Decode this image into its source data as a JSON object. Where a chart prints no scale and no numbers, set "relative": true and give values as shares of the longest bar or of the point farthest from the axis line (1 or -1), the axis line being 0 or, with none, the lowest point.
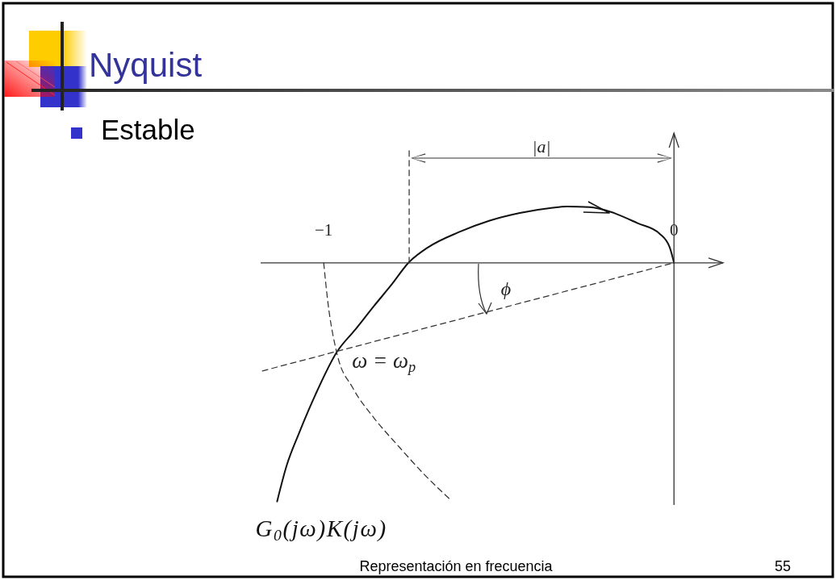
{
  "chart_data": {
    "type": "line",
    "title": "Nyquist",
    "subtitle": "Estable",
    "relative": true,
    "xlim": [
      -1.18,
      0.14
    ],
    "xticks": [
      -1,
      0
    ],
    "marker": "none",
    "series": [
      {
        "name": "G$_{0}$(jω)K(jω)",
        "color": "#111111",
        "line_style": "solid",
        "x": [
          -1.133,
          -1.106,
          -1.071,
          -1.025,
          -0.963,
          -0.91,
          -0.857,
          -0.806,
          -0.758,
          -0.703,
          -0.615,
          -0.528,
          -0.44,
          -0.35,
          -0.306,
          -0.242,
          -0.18,
          -0.104,
          -0.041,
          -0.012,
          0
        ],
        "values": [
          -1,
          -0.851,
          -0.716,
          -0.557,
          -0.375,
          -0.28,
          -0.182,
          -0.091,
          0,
          0.064,
          0.128,
          0.176,
          0.209,
          0.23,
          0.236,
          0.233,
          0.213,
          0.166,
          0.122,
          0.064,
          0
        ]
      },
      {
        "color": "#333333",
        "line_style": "dashed",
        "x": [
          -1,
          -0.988,
          -0.963,
          -0.917,
          -0.857,
          -0.783,
          -0.714,
          -0.638
        ],
        "values": [
          0,
          -0.166,
          -0.375,
          -0.524,
          -0.649,
          -0.774,
          -0.885,
          -0.993
        ]
      },
      {
        "color": "#333333",
        "line_style": "dashed",
        "x": [
          -1.175,
          0
        ],
        "values": [
          -0.453,
          0
        ]
      },
      {
        "color": "#333333",
        "line_style": "dashed",
        "x": [
          -0.756,
          -0.756
        ],
        "values": [
          0,
          0.47
        ]
      }
    ],
    "annotations": [
      "|a|",
      "ϕ",
      {
        "text": "ω = ω$_{p}$",
        "x": -0.963,
        "y": -0.375
      },
      "Representación en frecuencia",
      "55"
    ]
  }
}
